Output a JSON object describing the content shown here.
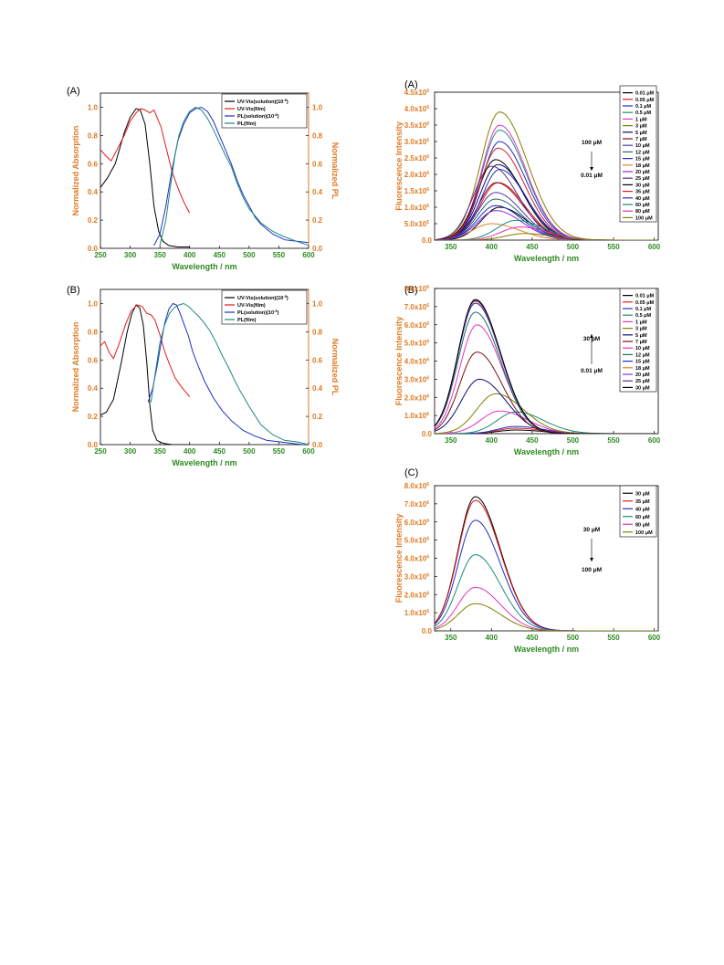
{
  "chart_data": [
    {
      "id": "L1",
      "type": "line",
      "panel_label": "(A)",
      "xlabel": "Wavelength / nm",
      "ylabel": "Normalized Absorption",
      "y2label": "Normalized PL",
      "xlim": [
        250,
        600
      ],
      "ylim": [
        0,
        1.1
      ],
      "y2lim": [
        0,
        1.1
      ],
      "xticks": [
        "250",
        "300",
        "350",
        "400",
        "450",
        "500",
        "550",
        "600"
      ],
      "yticks": [
        "0.0",
        "0.2",
        "0.4",
        "0.6",
        "0.8",
        "1.0"
      ],
      "y2ticks": [
        "0.0",
        "0.2",
        "0.4",
        "0.6",
        "0.8",
        "1.0"
      ],
      "legend_position": "top-right",
      "series": [
        {
          "name": "UV-Vis(solution)(10",
          "name_sup": "-5",
          "name_tail": ")",
          "color": "#000000",
          "x": [
            250,
            262,
            275,
            290,
            300,
            310,
            317,
            325,
            333,
            340,
            348,
            355,
            365,
            380,
            400
          ],
          "y": [
            0.43,
            0.5,
            0.6,
            0.82,
            0.93,
            0.99,
            0.98,
            0.88,
            0.6,
            0.3,
            0.12,
            0.05,
            0.02,
            0.01,
            0.01
          ]
        },
        {
          "name": "UV-Vis(film)",
          "name_sup": "",
          "name_tail": "",
          "color": "#e41a1c",
          "x": [
            250,
            258,
            268,
            278,
            290,
            300,
            310,
            318,
            325,
            333,
            340,
            345,
            352,
            360,
            370,
            380,
            390,
            400
          ],
          "y": [
            0.7,
            0.66,
            0.62,
            0.7,
            0.8,
            0.9,
            0.96,
            0.99,
            0.98,
            0.96,
            0.98,
            0.93,
            0.86,
            0.72,
            0.55,
            0.43,
            0.33,
            0.25
          ]
        },
        {
          "name": "PL(solution)(10",
          "name_sup": "-5",
          "name_tail": ")",
          "color": "#1f2dc9",
          "x": [
            340,
            350,
            360,
            370,
            380,
            390,
            400,
            410,
            420,
            430,
            440,
            450,
            460,
            470,
            480,
            490,
            500,
            510,
            520,
            540,
            560,
            580,
            600
          ],
          "y": [
            0.02,
            0.1,
            0.3,
            0.55,
            0.76,
            0.88,
            0.96,
            0.99,
            1.0,
            0.97,
            0.9,
            0.8,
            0.7,
            0.6,
            0.48,
            0.38,
            0.3,
            0.22,
            0.17,
            0.1,
            0.06,
            0.05,
            0.04
          ]
        },
        {
          "name": "PL(film)",
          "name_sup": "",
          "name_tail": "",
          "color": "#1c8a7a",
          "x": [
            350,
            360,
            368,
            375,
            382,
            390,
            400,
            410,
            420,
            430,
            440,
            450,
            460,
            470,
            480,
            490,
            500,
            520,
            540,
            560,
            580,
            600
          ],
          "y": [
            0.02,
            0.2,
            0.45,
            0.65,
            0.8,
            0.9,
            0.97,
            1.0,
            0.98,
            0.92,
            0.84,
            0.75,
            0.66,
            0.58,
            0.46,
            0.36,
            0.28,
            0.18,
            0.12,
            0.08,
            0.05,
            0.02
          ]
        }
      ]
    },
    {
      "id": "L2",
      "type": "line",
      "panel_label": "(B)",
      "xlabel": "Wavelength / nm",
      "ylabel": "Normalized Absorption",
      "y2label": "Normalized PL",
      "xlim": [
        250,
        600
      ],
      "ylim": [
        0,
        1.1
      ],
      "y2lim": [
        0,
        1.1
      ],
      "xticks": [
        "250",
        "300",
        "350",
        "400",
        "450",
        "500",
        "550",
        "600"
      ],
      "yticks": [
        "0.0",
        "0.2",
        "0.4",
        "0.6",
        "0.8",
        "1.0"
      ],
      "y2ticks": [
        "0.0",
        "0.2",
        "0.4",
        "0.6",
        "0.8",
        "1.0"
      ],
      "legend_position": "top-right",
      "series": [
        {
          "name": "UV-Vis(solution)(10",
          "name_sup": "-5",
          "name_tail": ")",
          "color": "#000000",
          "x": [
            250,
            260,
            272,
            285,
            295,
            303,
            310,
            316,
            322,
            328,
            333,
            338,
            345,
            355,
            370,
            400
          ],
          "y": [
            0.21,
            0.23,
            0.32,
            0.58,
            0.8,
            0.93,
            0.99,
            0.97,
            0.85,
            0.58,
            0.28,
            0.1,
            0.03,
            0.01,
            0.0,
            0.0
          ]
        },
        {
          "name": "UV-Vis(film)",
          "name_sup": "",
          "name_tail": "",
          "color": "#e41a1c",
          "x": [
            250,
            257,
            265,
            272,
            282,
            292,
            302,
            312,
            320,
            328,
            335,
            342,
            350,
            358,
            366,
            376,
            386,
            396,
            400
          ],
          "y": [
            0.7,
            0.73,
            0.65,
            0.61,
            0.72,
            0.85,
            0.95,
            0.99,
            0.98,
            0.93,
            0.92,
            0.88,
            0.78,
            0.66,
            0.57,
            0.47,
            0.41,
            0.36,
            0.34
          ]
        },
        {
          "name": "PL(solution)(10",
          "name_sup": "-5",
          "name_tail": ")",
          "color": "#1f2dc9",
          "x": [
            330,
            338,
            345,
            352,
            358,
            365,
            372,
            378,
            384,
            390,
            398,
            405,
            415,
            425,
            440,
            455,
            470,
            490,
            510,
            530,
            550,
            570,
            590,
            600
          ],
          "y": [
            0.3,
            0.4,
            0.55,
            0.72,
            0.86,
            0.96,
            1.0,
            0.99,
            0.93,
            0.86,
            0.77,
            0.66,
            0.55,
            0.45,
            0.33,
            0.24,
            0.17,
            0.1,
            0.06,
            0.03,
            0.02,
            0.01,
            0.0,
            0.0
          ]
        },
        {
          "name": "PL(film)",
          "name_sup": "",
          "name_tail": "",
          "color": "#1c8a7a",
          "x": [
            335,
            342,
            350,
            358,
            366,
            374,
            382,
            390,
            398,
            405,
            415,
            425,
            435,
            445,
            455,
            465,
            475,
            485,
            500,
            520,
            540,
            560,
            580,
            600
          ],
          "y": [
            0.3,
            0.5,
            0.72,
            0.85,
            0.93,
            0.97,
            0.99,
            1.0,
            0.98,
            0.95,
            0.91,
            0.86,
            0.8,
            0.72,
            0.63,
            0.55,
            0.46,
            0.38,
            0.27,
            0.14,
            0.07,
            0.03,
            0.02,
            0.0
          ]
        }
      ]
    },
    {
      "id": "F1",
      "type": "line",
      "panel_label": "(A)",
      "xlabel": "Wavelength / nm",
      "ylabel": "Fluorescence Intensity",
      "xlim": [
        330,
        605
      ],
      "ylim": [
        0,
        4500000
      ],
      "xticks": [
        "350",
        "400",
        "450",
        "500",
        "550",
        "600"
      ],
      "yticks": [
        "0.0",
        "5.0x10",
        "1.0x10",
        "1.5x10",
        "2.0x10",
        "2.5x10",
        "3.0x10",
        "3.5x10",
        "4.0x10",
        "4.5x10"
      ],
      "ytick_exp": [
        "",
        "5",
        "6",
        "6",
        "6",
        "6",
        "6",
        "6",
        "6",
        "6"
      ],
      "annotation_top": "100 μM",
      "annotation_bottom": "0.01 μM",
      "arrow_direction": "down",
      "legend_position": "top-right",
      "series": [
        {
          "name": "0.01 μM",
          "color": "#000000",
          "peak": 410,
          "width": 40,
          "amp": 1000000
        },
        {
          "name": "0.05 μM",
          "color": "#e41a1c",
          "peak": 408,
          "width": 40,
          "amp": 1750000
        },
        {
          "name": "0.1 μM",
          "color": "#1f2dc9",
          "peak": 410,
          "width": 40,
          "amp": 3000000
        },
        {
          "name": "0.5 μM",
          "color": "#1c8a7a",
          "peak": 410,
          "width": 40,
          "amp": 3350000
        },
        {
          "name": "1 μM",
          "color": "#e233c8",
          "peak": 410,
          "width": 40,
          "amp": 3500000
        },
        {
          "name": "3 μM",
          "color": "#808000",
          "peak": 410,
          "width": 42,
          "amp": 3900000
        },
        {
          "name": "5 μM",
          "color": "#0a0a78",
          "peak": 408,
          "width": 40,
          "amp": 2300000
        },
        {
          "name": "7 μM",
          "color": "#7a1010",
          "peak": 406,
          "width": 40,
          "amp": 1750000
        },
        {
          "name": "10 μM",
          "color": "#5533aa",
          "peak": 405,
          "width": 40,
          "amp": 1450000
        },
        {
          "name": "12 μM",
          "color": "#1c6b6b",
          "peak": 405,
          "width": 40,
          "amp": 1250000
        },
        {
          "name": "15 μM",
          "color": "#1f2dc9",
          "peak": 405,
          "width": 40,
          "amp": 1050000
        },
        {
          "name": "18 μM",
          "color": "#e08020",
          "peak": 400,
          "width": 42,
          "amp": 500000
        },
        {
          "name": "20 μM",
          "color": "#8a2be2",
          "peak": 405,
          "width": 40,
          "amp": 900000
        },
        {
          "name": "25 μM",
          "color": "#5b2c8a",
          "peak": 400,
          "width": 40,
          "amp": 2250000
        },
        {
          "name": "30 μM",
          "color": "#000000",
          "peak": 405,
          "width": 40,
          "amp": 2450000
        },
        {
          "name": "35 μM",
          "color": "#e41a1c",
          "peak": 408,
          "width": 40,
          "amp": 2800000
        },
        {
          "name": "40 μM",
          "color": "#1f2dc9",
          "peak": 410,
          "width": 40,
          "amp": 2150000
        },
        {
          "name": "60 μM",
          "color": "#1c8a7a",
          "peak": 430,
          "width": 42,
          "amp": 600000
        },
        {
          "name": "80 μM",
          "color": "#e233c8",
          "peak": 435,
          "width": 42,
          "amp": 400000
        },
        {
          "name": "100 μM",
          "color": "#808000",
          "peak": 440,
          "width": 42,
          "amp": 200000
        }
      ]
    },
    {
      "id": "F2",
      "type": "line",
      "panel_label": "(B)",
      "xlabel": "Wavelength / nm",
      "ylabel": "Fluorescence Intensity",
      "xlim": [
        330,
        605
      ],
      "ylim": [
        0,
        8000000
      ],
      "xticks": [
        "350",
        "400",
        "450",
        "500",
        "550",
        "600"
      ],
      "yticks": [
        "0.0",
        "1.0x10",
        "2.0x10",
        "3.0x10",
        "4.0x10",
        "5.0x10",
        "6.0x10",
        "7.0x10",
        "8.0x10"
      ],
      "ytick_exp": [
        "",
        "6",
        "6",
        "6",
        "6",
        "6",
        "6",
        "6",
        "6"
      ],
      "annotation_top": "30 μM",
      "annotation_bottom": "0.01 μM",
      "arrow_direction": "up",
      "legend_position": "top-right",
      "series": [
        {
          "name": "0.01 μM",
          "color": "#000000",
          "peak": 430,
          "width": 40,
          "amp": 200000
        },
        {
          "name": "0.05 μM",
          "color": "#e41a1c",
          "peak": 430,
          "width": 40,
          "amp": 300000
        },
        {
          "name": "0.1 μM",
          "color": "#1f2dc9",
          "peak": 430,
          "width": 40,
          "amp": 400000
        },
        {
          "name": "0.5 μM",
          "color": "#1c8a7a",
          "peak": 430,
          "width": 42,
          "amp": 1200000
        },
        {
          "name": "1 μM",
          "color": "#e233c8",
          "peak": 410,
          "width": 42,
          "amp": 1250000
        },
        {
          "name": "3 μM",
          "color": "#808000",
          "peak": 405,
          "width": 42,
          "amp": 2200000
        },
        {
          "name": "5 μM",
          "color": "#0a0a78",
          "peak": 385,
          "width": 40,
          "amp": 3000000
        },
        {
          "name": "7 μM",
          "color": "#7a1010",
          "peak": 382,
          "width": 38,
          "amp": 4500000
        },
        {
          "name": "10 μM",
          "color": "#e233c8",
          "peak": 382,
          "width": 38,
          "amp": 6000000
        },
        {
          "name": "12 μM",
          "color": "#1c6b6b",
          "peak": 380,
          "width": 38,
          "amp": 6700000
        },
        {
          "name": "15 μM",
          "color": "#1f2dc9",
          "peak": 380,
          "width": 38,
          "amp": 7200000
        },
        {
          "name": "18 μM",
          "color": "#e08020",
          "peak": 380,
          "width": 38,
          "amp": 7300000
        },
        {
          "name": "20 μM",
          "color": "#8a2be2",
          "peak": 380,
          "width": 38,
          "amp": 7350000
        },
        {
          "name": "25 μM",
          "color": "#5b2c8a",
          "peak": 380,
          "width": 38,
          "amp": 7350000
        },
        {
          "name": "30 μM",
          "color": "#000000",
          "peak": 380,
          "width": 38,
          "amp": 7400000
        }
      ]
    },
    {
      "id": "F3",
      "type": "line",
      "panel_label": "(C)",
      "xlabel": "Wavelength / nm",
      "ylabel": "Fluorescence Intensity",
      "xlim": [
        330,
        605
      ],
      "ylim": [
        0,
        8000000
      ],
      "xticks": [
        "350",
        "400",
        "450",
        "500",
        "550",
        "600"
      ],
      "yticks": [
        "0.0",
        "1.0x10",
        "2.0x10",
        "3.0x10",
        "4.0x10",
        "5.0x10",
        "6.0x10",
        "7.0x10",
        "8.0x10"
      ],
      "ytick_exp": [
        "",
        "6",
        "6",
        "6",
        "6",
        "6",
        "6",
        "6",
        "6"
      ],
      "annotation_top": "30 μM",
      "annotation_bottom": "100 μM",
      "arrow_direction": "down",
      "legend_position": "top-right",
      "series": [
        {
          "name": "30 μM",
          "color": "#000000",
          "peak": 380,
          "width": 38,
          "amp": 7400000
        },
        {
          "name": "35 μM",
          "color": "#e41a1c",
          "peak": 380,
          "width": 38,
          "amp": 7200000
        },
        {
          "name": "40 μM",
          "color": "#1f2dc9",
          "peak": 380,
          "width": 38,
          "amp": 6100000
        },
        {
          "name": "60 μM",
          "color": "#1c8a7a",
          "peak": 380,
          "width": 38,
          "amp": 4200000
        },
        {
          "name": "80 μM",
          "color": "#e233c8",
          "peak": 380,
          "width": 38,
          "amp": 2400000
        },
        {
          "name": "100 μM",
          "color": "#808000",
          "peak": 380,
          "width": 38,
          "amp": 1500000
        }
      ]
    }
  ]
}
